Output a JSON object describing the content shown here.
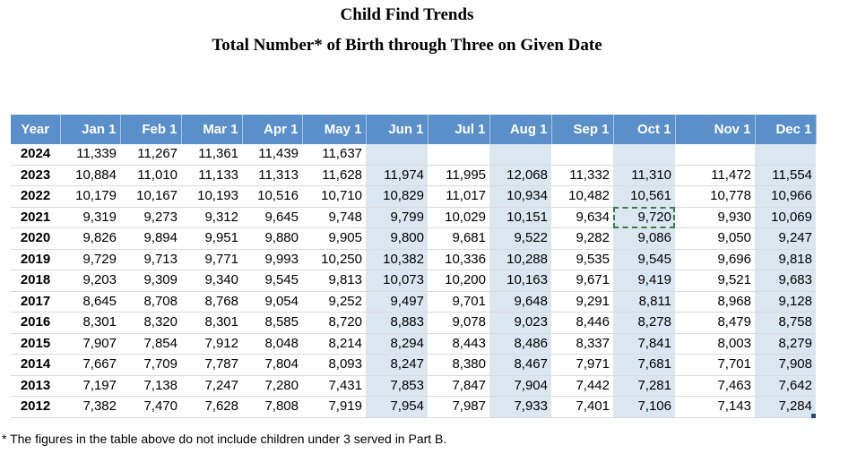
{
  "titles": {
    "line1": "Child Find Trends",
    "line2": "Total Number* of Birth through Three on Given Date"
  },
  "table": {
    "headers": [
      "Year",
      "Jan 1",
      "Feb 1",
      "Mar 1",
      "Apr 1",
      "May 1",
      "Jun 1",
      "Jul 1",
      "Aug 1",
      "Sep 1",
      "Oct 1",
      "Nov 1",
      "Dec 1"
    ],
    "rows": [
      [
        "2024",
        "11,339",
        "11,267",
        "11,361",
        "11,439",
        "11,637",
        "",
        "",
        "",
        "",
        "",
        "",
        ""
      ],
      [
        "2023",
        "10,884",
        "11,010",
        "11,133",
        "11,313",
        "11,628",
        "11,974",
        "11,995",
        "12,068",
        "11,332",
        "11,310",
        "11,472",
        "11,554"
      ],
      [
        "2022",
        "10,179",
        "10,167",
        "10,193",
        "10,516",
        "10,710",
        "10,829",
        "11,017",
        "10,934",
        "10,482",
        "10,561",
        "10,778",
        "10,966"
      ],
      [
        "2021",
        "9,319",
        "9,273",
        "9,312",
        "9,645",
        "9,748",
        "9,799",
        "10,029",
        "10,151",
        "9,634",
        "9,720",
        "9,930",
        "10,069"
      ],
      [
        "2020",
        "9,826",
        "9,894",
        "9,951",
        "9,880",
        "9,905",
        "9,800",
        "9,681",
        "9,522",
        "9,282",
        "9,086",
        "9,050",
        "9,247"
      ],
      [
        "2019",
        "9,729",
        "9,713",
        "9,771",
        "9,993",
        "10,250",
        "10,382",
        "10,336",
        "10,288",
        "9,535",
        "9,545",
        "9,696",
        "9,818"
      ],
      [
        "2018",
        "9,203",
        "9,309",
        "9,340",
        "9,545",
        "9,813",
        "10,073",
        "10,200",
        "10,163",
        "9,671",
        "9,419",
        "9,521",
        "9,683"
      ],
      [
        "2017",
        "8,645",
        "8,708",
        "8,768",
        "9,054",
        "9,252",
        "9,497",
        "9,701",
        "9,648",
        "9,291",
        "8,811",
        "8,968",
        "9,128"
      ],
      [
        "2016",
        "8,301",
        "8,320",
        "8,301",
        "8,585",
        "8,720",
        "8,883",
        "9,078",
        "9,023",
        "8,446",
        "8,278",
        "8,479",
        "8,758"
      ],
      [
        "2015",
        "7,907",
        "7,854",
        "7,912",
        "8,048",
        "8,214",
        "8,294",
        "8,443",
        "8,486",
        "8,337",
        "7,841",
        "8,003",
        "8,279"
      ],
      [
        "2014",
        "7,667",
        "7,709",
        "7,787",
        "7,804",
        "8,093",
        "8,247",
        "8,380",
        "8,467",
        "7,971",
        "7,681",
        "7,701",
        "7,908"
      ],
      [
        "2013",
        "7,197",
        "7,138",
        "7,247",
        "7,280",
        "7,431",
        "7,853",
        "7,847",
        "7,904",
        "7,442",
        "7,281",
        "7,463",
        "7,642"
      ],
      [
        "2012",
        "7,382",
        "7,470",
        "7,628",
        "7,808",
        "7,919",
        "7,954",
        "7,987",
        "7,933",
        "7,401",
        "7,106",
        "7,143",
        "7,284"
      ]
    ],
    "selected_cell": {
      "row": 3,
      "col": 10
    }
  },
  "footnote": "* The figures in the table above do not include children under 3 served in Part B.",
  "colors": {
    "header_bg": "#5b8fc9",
    "header_text": "#ffffff",
    "shaded_column": "#dce6f1",
    "selection": "#3a7d44"
  }
}
